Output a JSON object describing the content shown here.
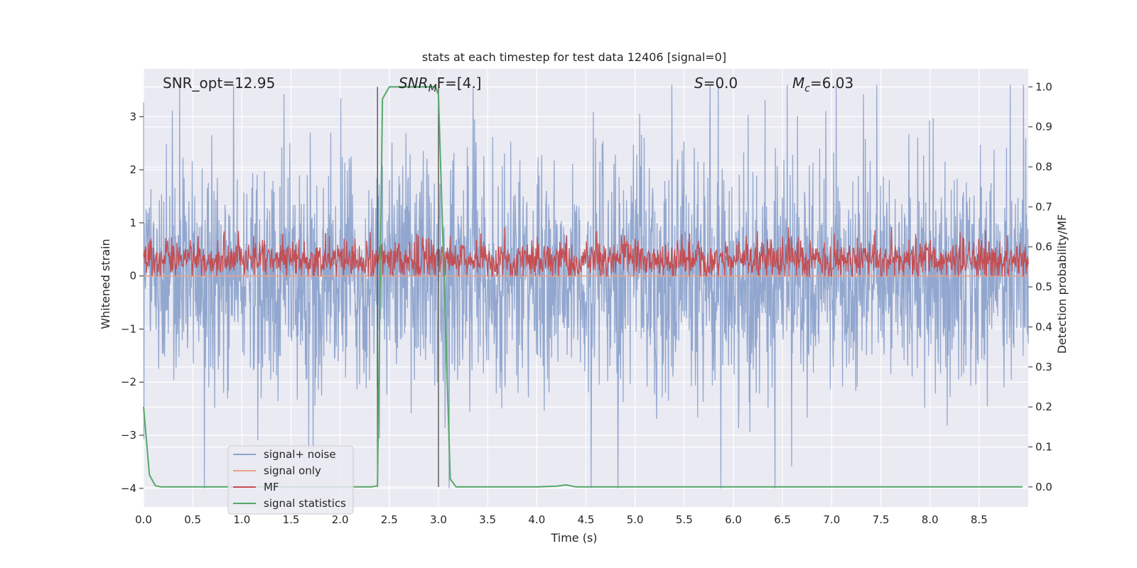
{
  "chart_data": {
    "type": "line",
    "title": "stats at each timestep for test data 12406 [signal=0]",
    "xlabel": "Time (s)",
    "ylabel": "Whitened strain",
    "ylabel_right": "Detection probability/MF",
    "xlim": [
      0.0,
      9.0
    ],
    "ylim": [
      -4.35,
      3.9
    ],
    "ylim_right": [
      -0.05,
      1.045
    ],
    "x_ticks": [
      0.0,
      0.5,
      1.0,
      1.5,
      2.0,
      2.5,
      3.0,
      3.5,
      4.0,
      4.5,
      5.0,
      5.5,
      6.0,
      6.5,
      7.0,
      7.5,
      8.0,
      8.5
    ],
    "x_tick_labels": [
      "0.0",
      "0.5",
      "1.0",
      "1.5",
      "2.0",
      "2.5",
      "3.0",
      "3.5",
      "4.0",
      "4.5",
      "5.0",
      "5.5",
      "6.0",
      "6.5",
      "7.0",
      "7.5",
      "8.0",
      "8.5"
    ],
    "y_ticks": [
      3,
      2,
      1,
      0,
      -1,
      -2,
      -3,
      -4
    ],
    "y_tick_labels": [
      "3",
      "2",
      "1",
      "0",
      "−1",
      "−2",
      "−3",
      "−4"
    ],
    "y_right_ticks": [
      1.0,
      0.9,
      0.8,
      0.7,
      0.6,
      0.5,
      0.4,
      0.3,
      0.2,
      0.1,
      0.0
    ],
    "y_right_tick_labels": [
      "1.0",
      "0.9",
      "0.8",
      "0.7",
      "0.6",
      "0.5",
      "0.4",
      "0.3",
      "0.2",
      "0.1",
      "0.0"
    ],
    "annotations": {
      "snr_opt": "SNR_opt=12.95",
      "snr_mf_main": "SNR",
      "snr_mf_sub": "M",
      "snr_mf_rest": "F=[4.]",
      "s_main": "S",
      "s_rest": "=0.0",
      "mc_main": "M",
      "mc_sub": "c",
      "mc_rest": "=6.03"
    },
    "vertical_lines": [
      2.38,
      3.0
    ],
    "series": [
      {
        "name": "signal+ noise",
        "color": "#8da3cc",
        "axis": "left",
        "amplitude_typical": 1.3,
        "amplitude_peak": 3.6
      },
      {
        "name": "signal only",
        "color": "#e8a389",
        "axis": "left",
        "values_constant": 0.0
      },
      {
        "name": "MF",
        "color": "#c44e52",
        "axis": "left",
        "range": [
          0.0,
          1.0
        ],
        "mean": 0.3
      },
      {
        "name": "signal statistics",
        "color": "#55a868",
        "axis": "right",
        "x": [
          0.0,
          0.06,
          0.12,
          0.18,
          0.3,
          0.5,
          1.0,
          1.5,
          2.0,
          2.32,
          2.38,
          2.43,
          2.5,
          2.6,
          2.8,
          2.97,
          3.0,
          3.06,
          3.12,
          3.18,
          3.5,
          4.0,
          4.2,
          4.3,
          4.4,
          5.0,
          6.0,
          7.0,
          8.0,
          8.94
        ],
        "y": [
          0.2,
          0.03,
          0.003,
          0.0,
          0.0,
          0.0,
          0.0,
          0.0,
          0.0,
          0.0,
          0.003,
          0.97,
          1.0,
          1.0,
          1.0,
          1.0,
          0.98,
          0.5,
          0.02,
          0.0,
          0.0,
          0.0,
          0.002,
          0.005,
          0.0,
          0.0,
          0.0,
          0.0,
          0.0,
          0.0
        ]
      }
    ],
    "legend": {
      "position": "lower-left",
      "entries": [
        "signal+ noise",
        "signal only",
        "MF",
        "signal statistics"
      ]
    },
    "colors": {
      "plot_background": "#eaeaf2",
      "grid": "#ffffff",
      "vline": "#555555"
    }
  }
}
